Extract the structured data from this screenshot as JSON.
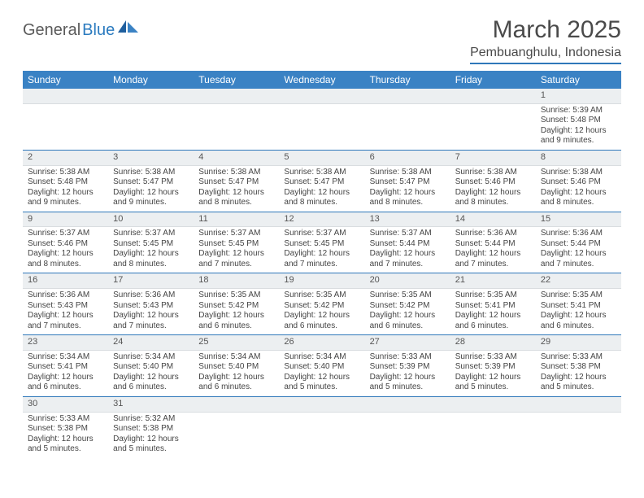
{
  "logo": {
    "text1": "General",
    "text2": "Blue"
  },
  "title": "March 2025",
  "location": "Pembuanghulu, Indonesia",
  "colors": {
    "header_bg": "#3a82c4",
    "rule": "#2f78ba",
    "daynum_bg": "#eceff1",
    "text": "#444444"
  },
  "weekdays": [
    "Sunday",
    "Monday",
    "Tuesday",
    "Wednesday",
    "Thursday",
    "Friday",
    "Saturday"
  ],
  "weeks": [
    [
      {
        "n": "",
        "sr": "",
        "ss": "",
        "dl": ""
      },
      {
        "n": "",
        "sr": "",
        "ss": "",
        "dl": ""
      },
      {
        "n": "",
        "sr": "",
        "ss": "",
        "dl": ""
      },
      {
        "n": "",
        "sr": "",
        "ss": "",
        "dl": ""
      },
      {
        "n": "",
        "sr": "",
        "ss": "",
        "dl": ""
      },
      {
        "n": "",
        "sr": "",
        "ss": "",
        "dl": ""
      },
      {
        "n": "1",
        "sr": "Sunrise: 5:39 AM",
        "ss": "Sunset: 5:48 PM",
        "dl": "Daylight: 12 hours and 9 minutes."
      }
    ],
    [
      {
        "n": "2",
        "sr": "Sunrise: 5:38 AM",
        "ss": "Sunset: 5:48 PM",
        "dl": "Daylight: 12 hours and 9 minutes."
      },
      {
        "n": "3",
        "sr": "Sunrise: 5:38 AM",
        "ss": "Sunset: 5:47 PM",
        "dl": "Daylight: 12 hours and 9 minutes."
      },
      {
        "n": "4",
        "sr": "Sunrise: 5:38 AM",
        "ss": "Sunset: 5:47 PM",
        "dl": "Daylight: 12 hours and 8 minutes."
      },
      {
        "n": "5",
        "sr": "Sunrise: 5:38 AM",
        "ss": "Sunset: 5:47 PM",
        "dl": "Daylight: 12 hours and 8 minutes."
      },
      {
        "n": "6",
        "sr": "Sunrise: 5:38 AM",
        "ss": "Sunset: 5:47 PM",
        "dl": "Daylight: 12 hours and 8 minutes."
      },
      {
        "n": "7",
        "sr": "Sunrise: 5:38 AM",
        "ss": "Sunset: 5:46 PM",
        "dl": "Daylight: 12 hours and 8 minutes."
      },
      {
        "n": "8",
        "sr": "Sunrise: 5:38 AM",
        "ss": "Sunset: 5:46 PM",
        "dl": "Daylight: 12 hours and 8 minutes."
      }
    ],
    [
      {
        "n": "9",
        "sr": "Sunrise: 5:37 AM",
        "ss": "Sunset: 5:46 PM",
        "dl": "Daylight: 12 hours and 8 minutes."
      },
      {
        "n": "10",
        "sr": "Sunrise: 5:37 AM",
        "ss": "Sunset: 5:45 PM",
        "dl": "Daylight: 12 hours and 8 minutes."
      },
      {
        "n": "11",
        "sr": "Sunrise: 5:37 AM",
        "ss": "Sunset: 5:45 PM",
        "dl": "Daylight: 12 hours and 7 minutes."
      },
      {
        "n": "12",
        "sr": "Sunrise: 5:37 AM",
        "ss": "Sunset: 5:45 PM",
        "dl": "Daylight: 12 hours and 7 minutes."
      },
      {
        "n": "13",
        "sr": "Sunrise: 5:37 AM",
        "ss": "Sunset: 5:44 PM",
        "dl": "Daylight: 12 hours and 7 minutes."
      },
      {
        "n": "14",
        "sr": "Sunrise: 5:36 AM",
        "ss": "Sunset: 5:44 PM",
        "dl": "Daylight: 12 hours and 7 minutes."
      },
      {
        "n": "15",
        "sr": "Sunrise: 5:36 AM",
        "ss": "Sunset: 5:44 PM",
        "dl": "Daylight: 12 hours and 7 minutes."
      }
    ],
    [
      {
        "n": "16",
        "sr": "Sunrise: 5:36 AM",
        "ss": "Sunset: 5:43 PM",
        "dl": "Daylight: 12 hours and 7 minutes."
      },
      {
        "n": "17",
        "sr": "Sunrise: 5:36 AM",
        "ss": "Sunset: 5:43 PM",
        "dl": "Daylight: 12 hours and 7 minutes."
      },
      {
        "n": "18",
        "sr": "Sunrise: 5:35 AM",
        "ss": "Sunset: 5:42 PM",
        "dl": "Daylight: 12 hours and 6 minutes."
      },
      {
        "n": "19",
        "sr": "Sunrise: 5:35 AM",
        "ss": "Sunset: 5:42 PM",
        "dl": "Daylight: 12 hours and 6 minutes."
      },
      {
        "n": "20",
        "sr": "Sunrise: 5:35 AM",
        "ss": "Sunset: 5:42 PM",
        "dl": "Daylight: 12 hours and 6 minutes."
      },
      {
        "n": "21",
        "sr": "Sunrise: 5:35 AM",
        "ss": "Sunset: 5:41 PM",
        "dl": "Daylight: 12 hours and 6 minutes."
      },
      {
        "n": "22",
        "sr": "Sunrise: 5:35 AM",
        "ss": "Sunset: 5:41 PM",
        "dl": "Daylight: 12 hours and 6 minutes."
      }
    ],
    [
      {
        "n": "23",
        "sr": "Sunrise: 5:34 AM",
        "ss": "Sunset: 5:41 PM",
        "dl": "Daylight: 12 hours and 6 minutes."
      },
      {
        "n": "24",
        "sr": "Sunrise: 5:34 AM",
        "ss": "Sunset: 5:40 PM",
        "dl": "Daylight: 12 hours and 6 minutes."
      },
      {
        "n": "25",
        "sr": "Sunrise: 5:34 AM",
        "ss": "Sunset: 5:40 PM",
        "dl": "Daylight: 12 hours and 6 minutes."
      },
      {
        "n": "26",
        "sr": "Sunrise: 5:34 AM",
        "ss": "Sunset: 5:40 PM",
        "dl": "Daylight: 12 hours and 5 minutes."
      },
      {
        "n": "27",
        "sr": "Sunrise: 5:33 AM",
        "ss": "Sunset: 5:39 PM",
        "dl": "Daylight: 12 hours and 5 minutes."
      },
      {
        "n": "28",
        "sr": "Sunrise: 5:33 AM",
        "ss": "Sunset: 5:39 PM",
        "dl": "Daylight: 12 hours and 5 minutes."
      },
      {
        "n": "29",
        "sr": "Sunrise: 5:33 AM",
        "ss": "Sunset: 5:38 PM",
        "dl": "Daylight: 12 hours and 5 minutes."
      }
    ],
    [
      {
        "n": "30",
        "sr": "Sunrise: 5:33 AM",
        "ss": "Sunset: 5:38 PM",
        "dl": "Daylight: 12 hours and 5 minutes."
      },
      {
        "n": "31",
        "sr": "Sunrise: 5:32 AM",
        "ss": "Sunset: 5:38 PM",
        "dl": "Daylight: 12 hours and 5 minutes."
      },
      {
        "n": "",
        "sr": "",
        "ss": "",
        "dl": ""
      },
      {
        "n": "",
        "sr": "",
        "ss": "",
        "dl": ""
      },
      {
        "n": "",
        "sr": "",
        "ss": "",
        "dl": ""
      },
      {
        "n": "",
        "sr": "",
        "ss": "",
        "dl": ""
      },
      {
        "n": "",
        "sr": "",
        "ss": "",
        "dl": ""
      }
    ]
  ]
}
